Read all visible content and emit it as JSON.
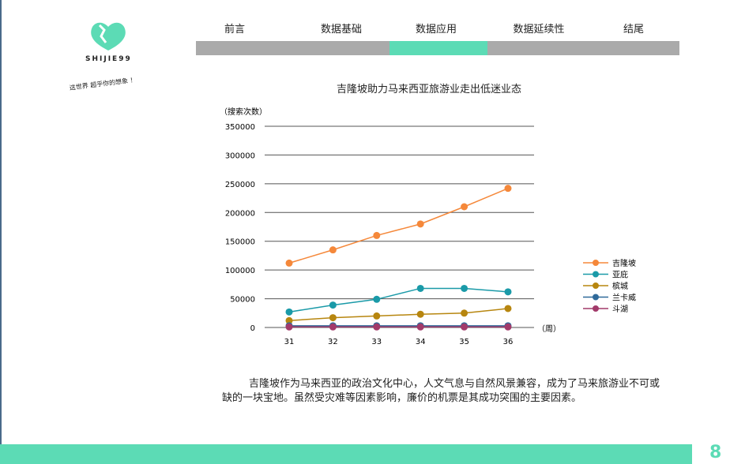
{
  "brand": {
    "name": "SHIJIE99",
    "slogan": "这世界 超乎你的想象 ！"
  },
  "nav": {
    "tabs": [
      "前言",
      "数据基础",
      "数据应用",
      "数据延续性",
      "结尾"
    ],
    "active": 2,
    "active_color": "#5cdbb5"
  },
  "chart_data": {
    "type": "line",
    "title": "吉隆坡助力马来西亚旅游业走出低迷业态",
    "ylabel": "（搜索次数）",
    "xlabel": "（周）",
    "ylim": [
      0,
      350000
    ],
    "yticks": [
      "0",
      "50000",
      "100000",
      "150000",
      "200000",
      "250000",
      "300000",
      "350000"
    ],
    "x": [
      31,
      32,
      33,
      34,
      35,
      36
    ],
    "grid": true,
    "legend": "right",
    "series": [
      {
        "name": "吉隆坡",
        "color": "#f5883a",
        "values": [
          112000,
          135000,
          160000,
          180000,
          210000,
          242000
        ]
      },
      {
        "name": "亚庇",
        "color": "#1a9aa8",
        "values": [
          27000,
          39000,
          49000,
          68000,
          68000,
          62000
        ]
      },
      {
        "name": "槟城",
        "color": "#b7860f",
        "values": [
          12000,
          17000,
          20000,
          23000,
          25000,
          33000
        ]
      },
      {
        "name": "兰卡威",
        "color": "#2f6a9a",
        "values": [
          3000,
          3000,
          3000,
          3000,
          3000,
          3000
        ]
      },
      {
        "name": "斗湖",
        "color": "#a23a6a",
        "values": [
          1000,
          1000,
          1000,
          1000,
          1000,
          1000
        ]
      }
    ]
  },
  "paragraph": "吉隆坡作为马来西亚的政治文化中心，人文气息与自然风景兼容，成为了马来旅游业不可或缺的一块宝地。虽然受灾难等因素影响，廉价的机票是其成功突围的主要因素。",
  "page_number": "8"
}
